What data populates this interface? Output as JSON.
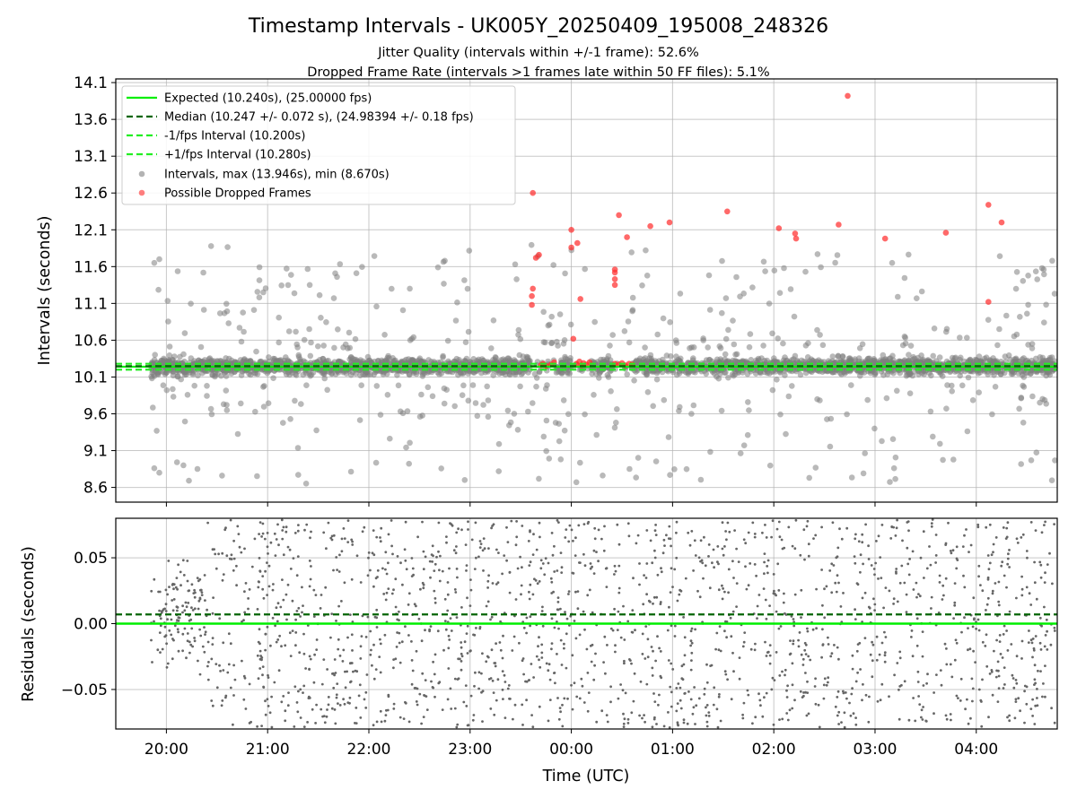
{
  "figure": {
    "title": "Timestamp Intervals - UK005Y_20250409_195008_248326",
    "subtitle_1": "Jitter Quality (intervals within +/-1 frame): 52.6%",
    "subtitle_2": "Dropped Frame Rate (intervals >1 frames late within 50 FF files): 5.1%"
  },
  "colors": {
    "expected": "#00ee00",
    "median": "#006400",
    "interval_band": "#22ee22",
    "points": "#808080",
    "dropped": "#ff2a2a",
    "grid": "#b0b0b0",
    "residual_points": "#666666"
  },
  "chart_data": [
    {
      "type": "scatter",
      "name": "intervals",
      "ylabel": "Intervals (seconds)",
      "xlabel": "",
      "ylim": [
        8.4,
        14.15
      ],
      "yticks": [
        8.6,
        9.1,
        9.6,
        10.1,
        10.6,
        11.1,
        11.6,
        12.1,
        12.6,
        13.1,
        13.6,
        14.1
      ],
      "ytick_labels": [
        "8.6",
        "9.1",
        "9.6",
        "10.1",
        "10.6",
        "11.1",
        "11.6",
        "12.1",
        "12.6",
        "13.1",
        "13.6",
        "14.1"
      ],
      "x_range_hours": [
        19.5,
        28.8
      ],
      "xticks_hours": [
        20,
        21,
        22,
        23,
        24,
        25,
        26,
        27,
        28
      ],
      "grid": true,
      "legend_position": "top-left",
      "lines": [
        {
          "name": "Expected (10.240s), (25.00000 fps)",
          "y": 10.24,
          "style": "solid"
        },
        {
          "name": "Median (10.247 +/- 0.072 s), (24.98394 +/- 0.18 fps)",
          "y": 10.247,
          "style": "dashed"
        },
        {
          "name": "-1/fps Interval (10.200s)",
          "y": 10.2,
          "style": "dashed"
        },
        {
          "name": "+1/fps Interval (10.280s)",
          "y": 10.28,
          "style": "dashed"
        }
      ],
      "scatter_series": [
        {
          "name": "Intervals, max (13.946s), min (8.670s)",
          "max": 13.946,
          "min": 8.67
        },
        {
          "name": "Possible Dropped Frames",
          "points": [
            [
              23.62,
              12.6
            ],
            [
              23.65,
              11.72
            ],
            [
              23.68,
              11.76
            ],
            [
              23.62,
              11.3
            ],
            [
              23.61,
              11.2
            ],
            [
              23.61,
              11.08
            ],
            [
              24.0,
              12.1
            ],
            [
              24.0,
              11.86
            ],
            [
              24.06,
              11.92
            ],
            [
              24.09,
              11.16
            ],
            [
              24.02,
              10.62
            ],
            [
              24.47,
              12.3
            ],
            [
              24.55,
              12.0
            ],
            [
              24.43,
              11.56
            ],
            [
              24.43,
              11.52
            ],
            [
              24.43,
              11.43
            ],
            [
              24.43,
              11.35
            ],
            [
              24.78,
              12.15
            ],
            [
              24.97,
              12.2
            ],
            [
              25.54,
              12.35
            ],
            [
              26.05,
              12.12
            ],
            [
              26.21,
              12.05
            ],
            [
              26.22,
              11.98
            ],
            [
              26.64,
              12.17
            ],
            [
              26.73,
              13.92
            ],
            [
              27.1,
              11.98
            ],
            [
              27.7,
              12.06
            ],
            [
              28.12,
              12.44
            ],
            [
              28.25,
              12.2
            ],
            [
              28.12,
              11.12
            ],
            [
              23.7,
              10.26
            ],
            [
              23.72,
              10.28
            ],
            [
              23.75,
              10.25
            ],
            [
              23.8,
              10.27
            ],
            [
              23.83,
              10.3
            ],
            [
              24.05,
              10.28
            ],
            [
              24.08,
              10.31
            ],
            [
              24.1,
              10.26
            ],
            [
              24.12,
              10.29
            ],
            [
              24.15,
              10.27
            ],
            [
              24.18,
              10.3
            ],
            [
              24.43,
              10.28
            ],
            [
              24.47,
              10.27
            ],
            [
              24.5,
              10.29
            ],
            [
              24.53,
              10.26
            ],
            [
              24.57,
              10.28
            ],
            [
              24.6,
              10.27
            ]
          ]
        }
      ]
    },
    {
      "type": "scatter",
      "name": "residuals",
      "xlabel": "Time (UTC)",
      "ylabel": "Residuals (seconds)",
      "ylim": [
        -0.08,
        0.08
      ],
      "yticks": [
        -0.05,
        0.0,
        0.05
      ],
      "ytick_labels": [
        "−0.05",
        "0.00",
        "0.05"
      ],
      "xticks_hours": [
        20,
        21,
        22,
        23,
        24,
        25,
        26,
        27,
        28
      ],
      "xtick_labels": [
        "20:00",
        "21:00",
        "22:00",
        "23:00",
        "00:00",
        "01:00",
        "02:00",
        "03:00",
        "04:00"
      ],
      "grid": true,
      "lines": [
        {
          "name": "expected",
          "y": 0.0,
          "style": "solid"
        },
        {
          "name": "median",
          "y": 0.007,
          "style": "dashed"
        }
      ]
    }
  ]
}
